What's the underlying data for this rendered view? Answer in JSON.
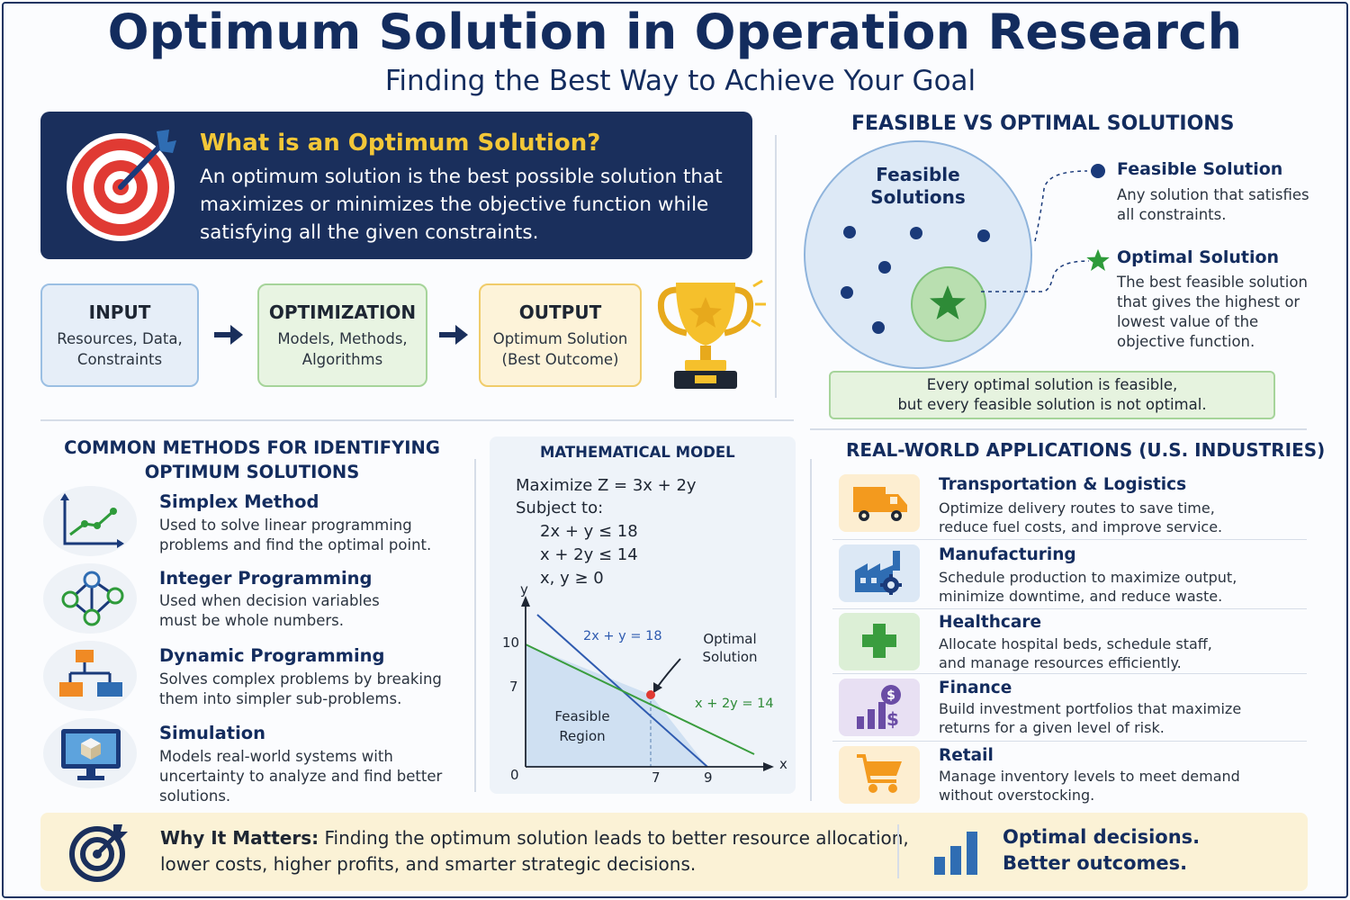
{
  "header": {
    "title": "Optimum Solution in Operation Research",
    "subtitle": "Finding the Best Way to Achieve Your Goal"
  },
  "definition": {
    "icon": "target-icon",
    "title": "What is an Optimum Solution?",
    "text": "An optimum solution is the best possible solution that maximizes or minimizes the objective function while satisfying all the given constraints."
  },
  "flow": {
    "input": {
      "title": "INPUT",
      "text_line1": "Resources, Data,",
      "text_line2": "Constraints"
    },
    "optimization": {
      "title": "OPTIMIZATION",
      "text_line1": "Models, Methods,",
      "text_line2": "Algorithms"
    },
    "output": {
      "title": "OUTPUT",
      "text_line1": "Optimum Solution",
      "text_line2": "(Best Outcome)"
    },
    "arrow_icon": "arrow-right-icon",
    "trophy_icon": "trophy-icon"
  },
  "feasible_vs_optimal": {
    "title": "FEASIBLE VS OPTIMAL SOLUTIONS",
    "circle_label_line1": "Feasible",
    "circle_label_line2": "Solutions",
    "feasible": {
      "title": "Feasible Solution",
      "text": "Any solution that satisfies all constraints."
    },
    "optimal": {
      "title": "Optimal Solution",
      "text": "The best feasible solution that gives the highest or lowest value of the objective function."
    },
    "note_line1": "Every optimal solution is feasible,",
    "note_line2": "but every feasible solution is not optimal."
  },
  "methods": {
    "title_line1": "COMMON METHODS FOR IDENTIFYING",
    "title_line2": "OPTIMUM SOLUTIONS",
    "items": [
      {
        "title": "Simplex Method",
        "text": "Used to solve linear programming problems and find the optimal point.",
        "icon": "line-chart-icon"
      },
      {
        "title": "Integer Programming",
        "text": "Used when decision variables must be whole numbers.",
        "icon": "network-nodes-icon"
      },
      {
        "title": "Dynamic Programming",
        "text": "Solves complex problems by breaking them into simpler sub-problems.",
        "icon": "hierarchy-icon"
      },
      {
        "title": "Simulation",
        "text": "Models real-world systems with uncertainty to analyze and find better solutions.",
        "icon": "monitor-cube-icon"
      }
    ]
  },
  "math_model": {
    "title": "MATHEMATICAL MODEL",
    "objective": "Maximize Z = 3x + 2y",
    "subject_to": "Subject to:",
    "constraints": [
      "2x + y ≤ 18",
      "x + 2y ≤ 14",
      "x, y ≥ 0"
    ],
    "graph": {
      "y_axis": "y",
      "x_axis": "x",
      "origin": "0",
      "y_ticks": [
        "10",
        "7"
      ],
      "x_ticks": [
        "7",
        "9"
      ],
      "line1_label": "2x + y = 18",
      "line2_label": "x + 2y = 14",
      "optimal_label_line1": "Optimal",
      "optimal_label_line2": "Solution",
      "region_label_line1": "Feasible",
      "region_label_line2": "Region"
    }
  },
  "applications": {
    "title": "REAL-WORLD APPLICATIONS (U.S. INDUSTRIES)",
    "items": [
      {
        "title": "Transportation & Logistics",
        "text_line1": "Optimize delivery routes to save time,",
        "text_line2": "reduce fuel costs, and improve service.",
        "icon": "truck-icon",
        "color": "#f39a1e"
      },
      {
        "title": "Manufacturing",
        "text_line1": "Schedule production to maximize output,",
        "text_line2": "minimize downtime, and reduce waste.",
        "icon": "factory-icon",
        "color": "#2f6db3"
      },
      {
        "title": "Healthcare",
        "text_line1": "Allocate hospital beds, schedule staff,",
        "text_line2": "and manage resources efficiently.",
        "icon": "medical-cross-icon",
        "color": "#3a9d3e"
      },
      {
        "title": "Finance",
        "text_line1": "Build investment portfolios that maximize",
        "text_line2": "returns for a given level of risk.",
        "icon": "finance-chart-icon",
        "color": "#6a4ca5"
      },
      {
        "title": "Retail",
        "text_line1": "Manage inventory levels to meet demand",
        "text_line2": "without overstocking.",
        "icon": "shopping-cart-icon",
        "color": "#f39a1e"
      }
    ]
  },
  "bottom": {
    "icon": "target-icon",
    "bold": "Why It Matters:",
    "text_rest": " Finding the optimum solution leads to better resource allocation,",
    "text_line2": "lower costs, higher profits, and smarter strategic decisions.",
    "right_line1": "Optimal decisions.",
    "right_line2": "Better outcomes.",
    "right_icon": "bar-chart-icon"
  }
}
